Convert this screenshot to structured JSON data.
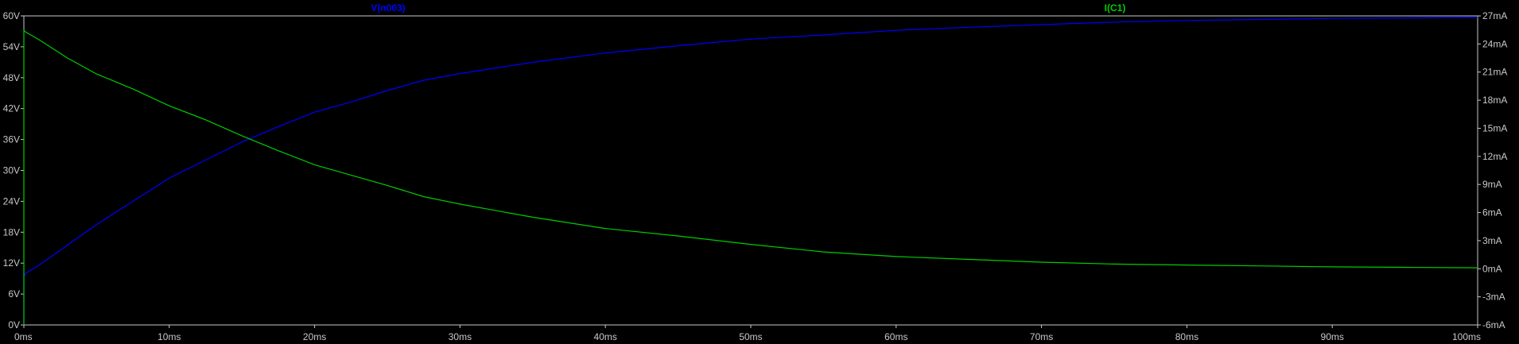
{
  "chart_data": {
    "type": "line",
    "x": {
      "min": 0,
      "max": 100,
      "unit": "ms",
      "ticks": [
        0,
        10,
        20,
        30,
        40,
        50,
        60,
        70,
        80,
        90,
        100
      ],
      "tick_labels": [
        "0ms",
        "10ms",
        "20ms",
        "30ms",
        "40ms",
        "50ms",
        "60ms",
        "70ms",
        "80ms",
        "90ms",
        "100ms"
      ]
    },
    "y_left": {
      "min": 0,
      "max": 60,
      "ticks": [
        0,
        6,
        12,
        18,
        24,
        30,
        36,
        42,
        48,
        54,
        60
      ],
      "tick_labels": [
        "0V",
        "6V",
        "12V",
        "18V",
        "24V",
        "30V",
        "36V",
        "42V",
        "48V",
        "54V",
        "60V"
      ]
    },
    "y_right": {
      "min": -6,
      "max": 27,
      "ticks": [
        -6,
        -3,
        0,
        3,
        6,
        9,
        12,
        15,
        18,
        21,
        24,
        27
      ],
      "tick_labels": [
        "-6mA",
        "-3mA",
        "0mA",
        "3mA",
        "6mA",
        "9mA",
        "12mA",
        "15mA",
        "18mA",
        "21mA",
        "24mA",
        "27mA"
      ]
    },
    "series": [
      {
        "name": "V(n003)",
        "axis": "left",
        "color": "#0000ff",
        "x": [
          0,
          0,
          0.1,
          1,
          2,
          3,
          5,
          7.5,
          10,
          12.5,
          15,
          17.5,
          20,
          22.5,
          25,
          27.5,
          30,
          35,
          40,
          45,
          50,
          55,
          60,
          65,
          70,
          75,
          80,
          85,
          90,
          95,
          100
        ],
        "y": [
          0,
          9.3,
          10,
          11.5,
          13.5,
          15.5,
          19.5,
          24,
          28.5,
          32,
          35.5,
          38.5,
          41.3,
          43.3,
          45.5,
          47.5,
          48.8,
          51,
          52.8,
          54.2,
          55.5,
          56.3,
          57.2,
          57.8,
          58.3,
          58.8,
          59.1,
          59.3,
          59.5,
          59.6,
          59.7
        ]
      },
      {
        "name": "I(C1)",
        "axis": "right",
        "color": "#00cc00",
        "x": [
          0,
          0,
          0.1,
          1,
          2,
          3,
          5,
          7.5,
          10,
          12.5,
          15,
          17.5,
          20,
          22.5,
          25,
          27.5,
          30,
          35,
          40,
          45,
          50,
          55,
          60,
          65,
          70,
          75,
          80,
          85,
          90,
          95,
          100
        ],
        "y": [
          -6,
          25.5,
          25.3,
          24.5,
          23.5,
          22.5,
          20.8,
          19.2,
          17.4,
          15.9,
          14.2,
          12.6,
          11.1,
          10.0,
          8.9,
          7.7,
          6.9,
          5.5,
          4.3,
          3.5,
          2.6,
          1.8,
          1.3,
          1.0,
          0.7,
          0.5,
          0.4,
          0.3,
          0.2,
          0.15,
          0.1
        ]
      }
    ],
    "grid": false,
    "background": "#000000",
    "axis_color": "#c8c8c8"
  }
}
